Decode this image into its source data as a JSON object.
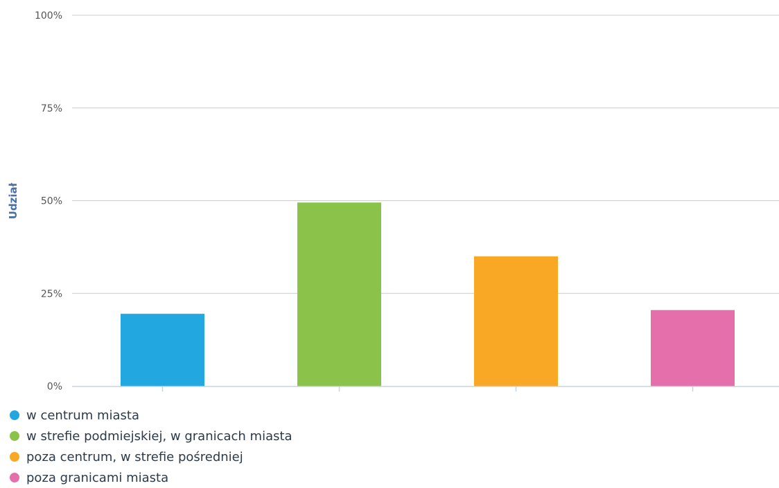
{
  "chart_data": {
    "type": "bar",
    "categories": [
      "w centrum miasta",
      "w strefie podmiejskiej, w granicach miasta",
      "poza centrum, w strefie pośredniej",
      "poza granicami miasta"
    ],
    "values": [
      19.5,
      49.5,
      35,
      20.5
    ],
    "colors": [
      "#22a7e0",
      "#8bc34a",
      "#f9a825",
      "#e46fab"
    ],
    "ylabel": "Udział",
    "ylim": [
      0,
      100
    ],
    "yticks": [
      "0%",
      "25%",
      "50%",
      "75%",
      "100%"
    ],
    "grid": true,
    "legend_position": "bottom-left"
  }
}
